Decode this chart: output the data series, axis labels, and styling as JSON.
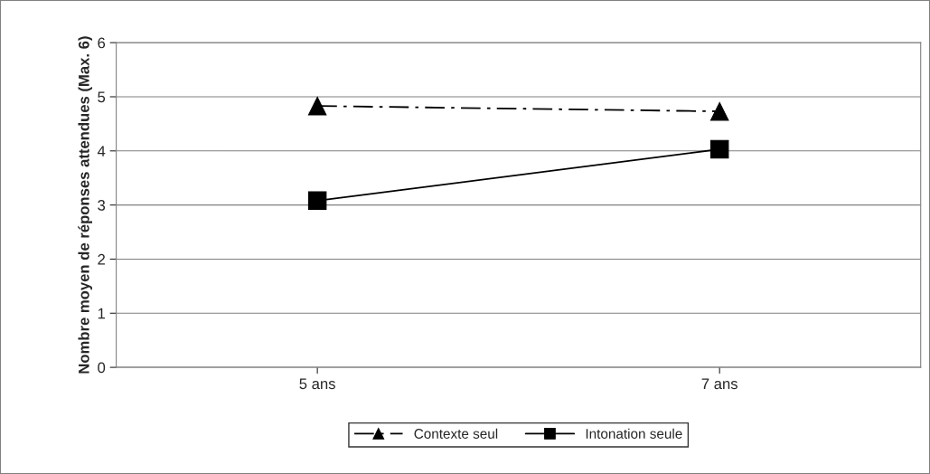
{
  "chart_data": {
    "type": "line",
    "ylabel": "Nombre moyen de réponses attendues (Max. 6)",
    "categories": [
      "5 ans",
      "7 ans"
    ],
    "series": [
      {
        "name": "Contexte seul",
        "color": "#000000",
        "values": [
          4.83,
          4.73
        ],
        "marker": "triangle",
        "line_style": "dashdot"
      },
      {
        "name": "Intonation seule",
        "color": "#000000",
        "values": [
          3.08,
          4.03
        ],
        "marker": "square",
        "line_style": "solid"
      }
    ],
    "ylim": [
      0,
      6
    ],
    "yticks": [
      0,
      1,
      2,
      3,
      4,
      5,
      6
    ],
    "grid": "y",
    "legend": "bottom"
  }
}
